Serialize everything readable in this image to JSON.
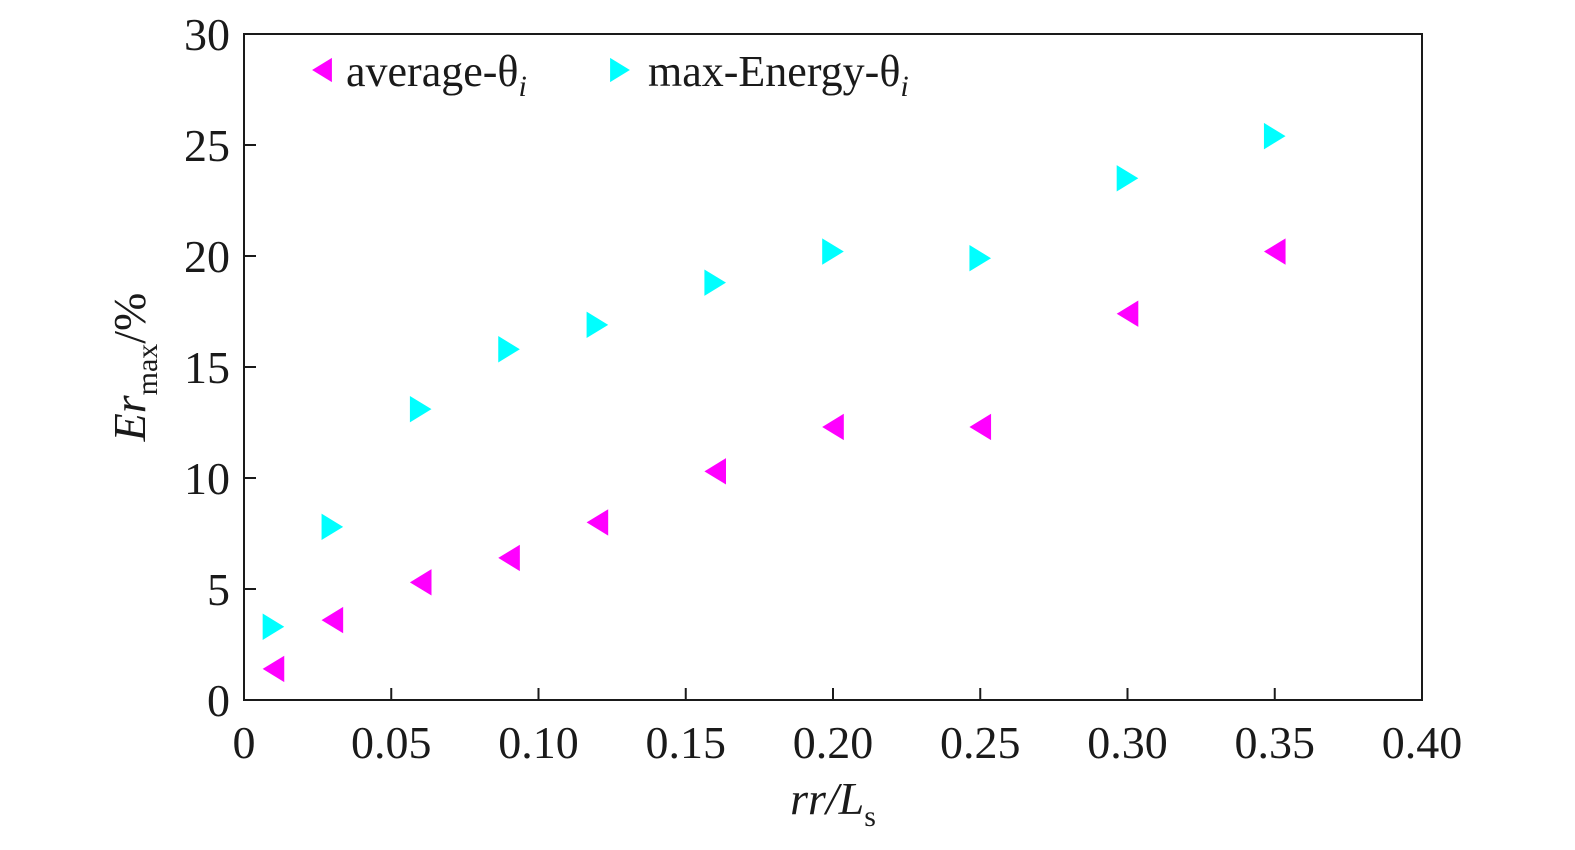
{
  "chart_data": {
    "type": "scatter",
    "xlabel": {
      "main": "rr/L",
      "sub": "s"
    },
    "ylabel": {
      "main": "Er",
      "sub": "max",
      "suffix": "/%"
    },
    "xlim": [
      0,
      0.4
    ],
    "ylim": [
      0,
      30
    ],
    "xticks": [
      0,
      0.05,
      0.1,
      0.15,
      0.2,
      0.25,
      0.3,
      0.35,
      0.4
    ],
    "xtick_labels": [
      "0",
      "0.05",
      "0.10",
      "0.15",
      "0.20",
      "0.25",
      "0.30",
      "0.35",
      "0.40"
    ],
    "yticks": [
      0,
      5,
      10,
      15,
      20,
      25,
      30
    ],
    "ytick_labels": [
      "0",
      "5",
      "10",
      "15",
      "20",
      "25",
      "30"
    ],
    "grid": false,
    "legend": {
      "placement": "top-left",
      "orientation": "horizontal"
    },
    "series": [
      {
        "name": "average-θ",
        "name_sub": "i",
        "marker": "triangle-left",
        "color": "#ff00ff",
        "x": [
          0.01,
          0.03,
          0.06,
          0.09,
          0.12,
          0.16,
          0.2,
          0.25,
          0.3,
          0.35
        ],
        "y": [
          1.4,
          3.6,
          5.3,
          6.4,
          8.0,
          10.3,
          12.3,
          12.3,
          17.4,
          20.2
        ]
      },
      {
        "name": "max-Energy-θ",
        "name_sub": "i",
        "marker": "triangle-right",
        "color": "#00ffff",
        "x": [
          0.01,
          0.03,
          0.06,
          0.09,
          0.12,
          0.16,
          0.2,
          0.25,
          0.3,
          0.35
        ],
        "y": [
          3.3,
          7.8,
          13.1,
          15.8,
          16.9,
          18.8,
          20.2,
          19.9,
          23.5,
          25.4
        ]
      }
    ]
  }
}
